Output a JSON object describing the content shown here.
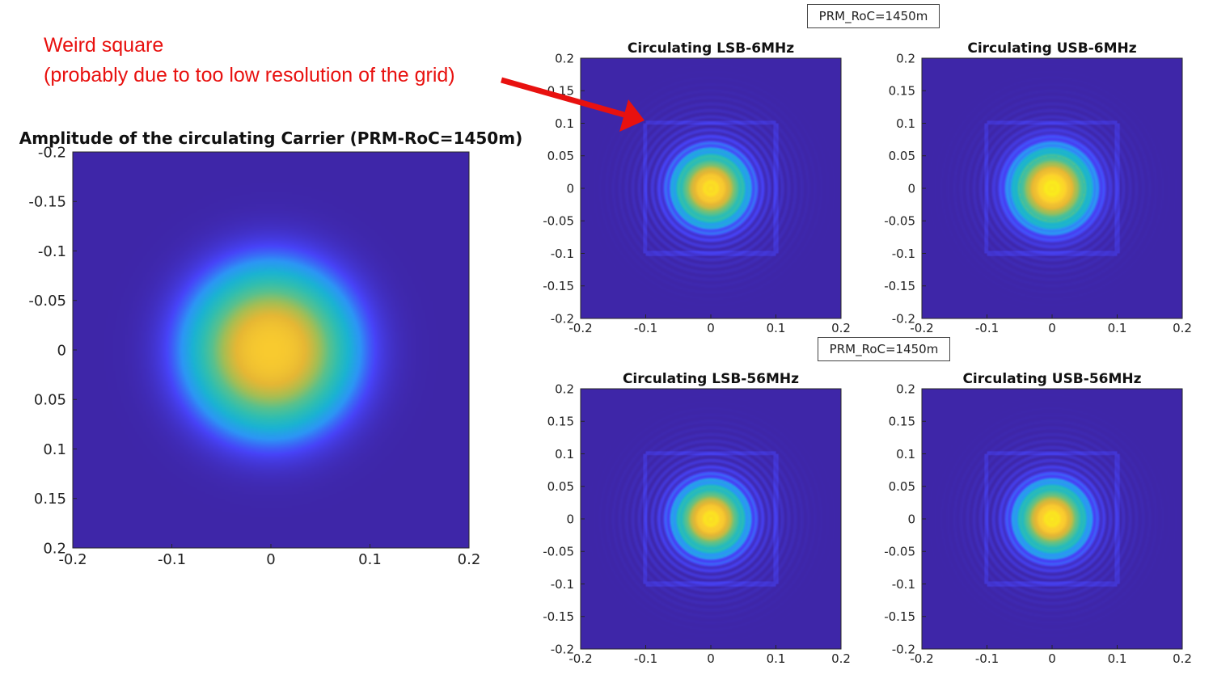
{
  "annotation": {
    "line1": "Weird square",
    "line2": "(probably due to too low resolution of the grid)",
    "arrow_color": "#e8110f"
  },
  "legend_tags": [
    "PRM_RoC=1450m",
    "PRM_RoC=1450m"
  ],
  "colormap": [
    "#3e26a8",
    "#4743f8",
    "#2c96f5",
    "#1ab3d2",
    "#2fbeb1",
    "#59c18d",
    "#a4be54",
    "#e6b734",
    "#fcce2e",
    "#f9fb14"
  ],
  "chart_data": [
    {
      "type": "heatmap",
      "title": "Amplitude of the circulating Carrier (PRM-RoC=1450m)",
      "xlim": [
        -0.2,
        0.2
      ],
      "ylim": [
        -0.2,
        0.2
      ],
      "x_ticks": [
        "-0.2",
        "-0.1",
        "0",
        "0.1",
        "0.2"
      ],
      "y_ticks": [
        "-0.2",
        "-0.15",
        "-0.1",
        "-0.05",
        "0",
        "0.05",
        "0.1",
        "0.15",
        "0.2"
      ],
      "y_direction": "down",
      "beam_radius": 0.08,
      "beam_peak": 0.87,
      "ring_strength": 0,
      "square_half_width": 0
    },
    {
      "type": "heatmap",
      "title": "Circulating LSB-6MHz",
      "xlim": [
        -0.2,
        0.2
      ],
      "ylim": [
        -0.2,
        0.2
      ],
      "x_ticks": [
        "-0.2",
        "-0.1",
        "0",
        "0.1",
        "0.2"
      ],
      "y_ticks": [
        "0.2",
        "0.15",
        "0.1",
        "0.05",
        "0",
        "-0.05",
        "-0.1",
        "-0.15",
        "-0.2"
      ],
      "y_direction": "up",
      "beam_radius": 0.05,
      "beam_peak": 0.92,
      "ring_strength": 0.12,
      "square_half_width": 0.1
    },
    {
      "type": "heatmap",
      "title": "Circulating USB-6MHz",
      "xlim": [
        -0.2,
        0.2
      ],
      "ylim": [
        -0.2,
        0.2
      ],
      "x_ticks": [
        "-0.2",
        "-0.1",
        "0",
        "0.1",
        "0.2"
      ],
      "y_ticks": [
        "0.2",
        "0.15",
        "0.1",
        "0.05",
        "0",
        "-0.05",
        "-0.1",
        "-0.15",
        "-0.2"
      ],
      "y_direction": "up",
      "beam_radius": 0.055,
      "beam_peak": 0.95,
      "ring_strength": 0.1,
      "square_half_width": 0.1
    },
    {
      "type": "heatmap",
      "title": "Circulating LSB-56MHz",
      "xlim": [
        -0.2,
        0.2
      ],
      "ylim": [
        -0.2,
        0.2
      ],
      "x_ticks": [
        "-0.2",
        "-0.1",
        "0",
        "0.1",
        "0.2"
      ],
      "y_ticks": [
        "0.2",
        "0.15",
        "0.1",
        "0.05",
        "0",
        "-0.05",
        "-0.1",
        "-0.15",
        "-0.2"
      ],
      "y_direction": "up",
      "beam_radius": 0.048,
      "beam_peak": 0.93,
      "ring_strength": 0.12,
      "square_half_width": 0.1
    },
    {
      "type": "heatmap",
      "title": "Circulating USB-56MHz",
      "xlim": [
        -0.2,
        0.2
      ],
      "ylim": [
        -0.2,
        0.2
      ],
      "x_ticks": [
        "-0.2",
        "-0.1",
        "0",
        "0.1",
        "0.2"
      ],
      "y_ticks": [
        "0.2",
        "0.15",
        "0.1",
        "0.05",
        "0",
        "-0.05",
        "-0.1",
        "-0.15",
        "-0.2"
      ],
      "y_direction": "up",
      "beam_radius": 0.048,
      "beam_peak": 0.94,
      "ring_strength": 0.11,
      "square_half_width": 0.1
    }
  ]
}
